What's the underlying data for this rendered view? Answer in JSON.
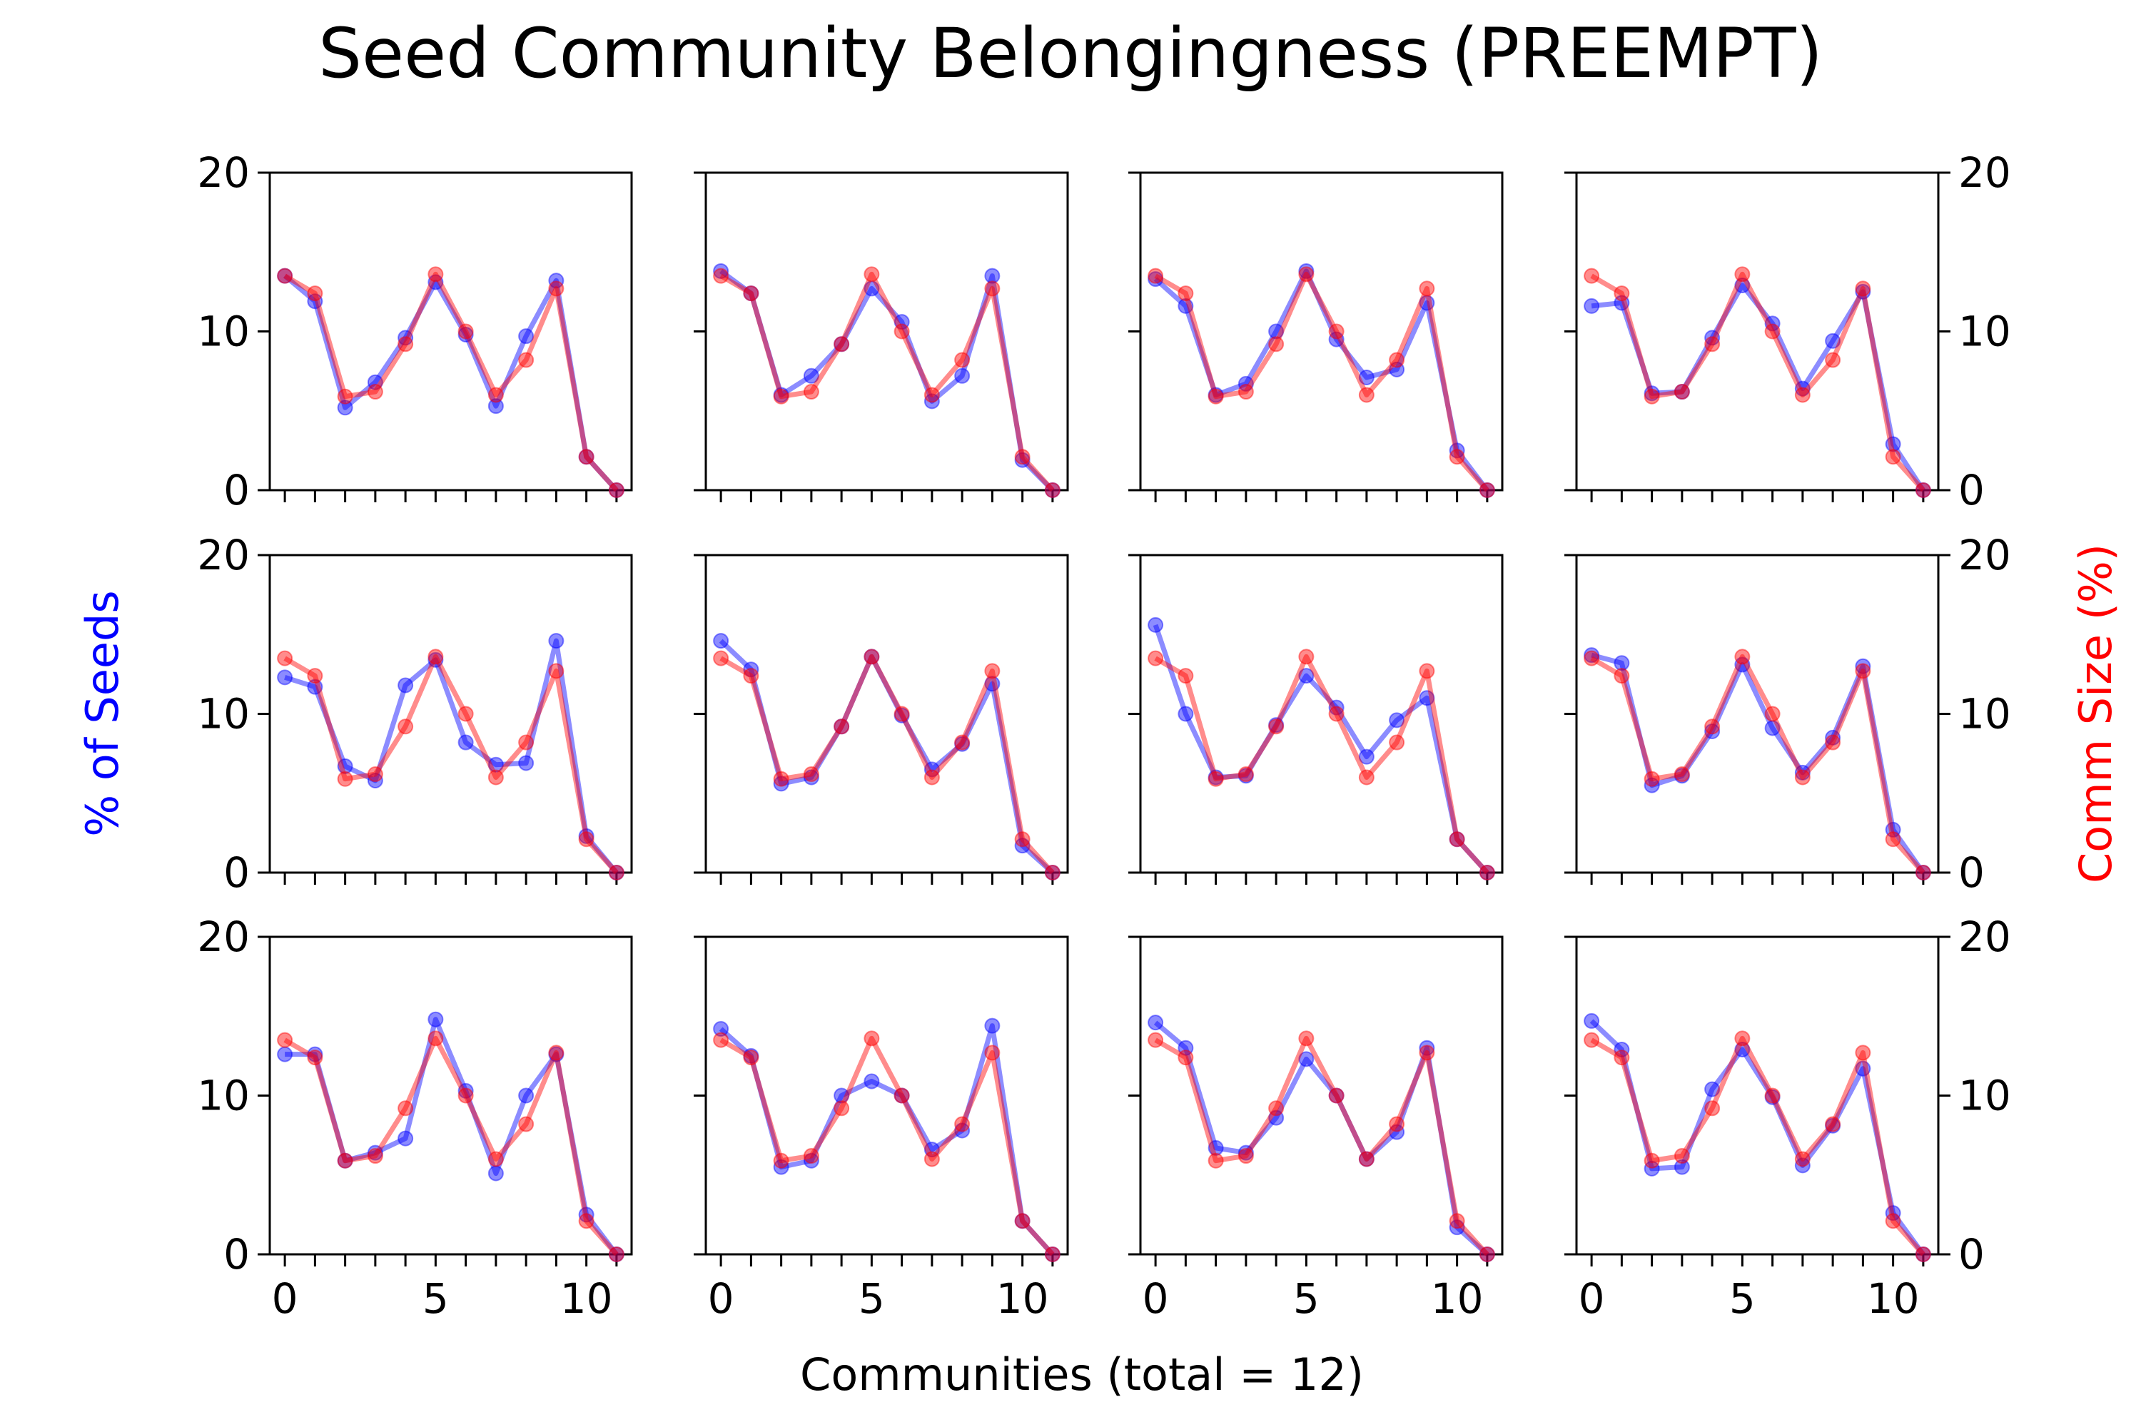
{
  "title": "Seed Community Belongingness (PREEMPT)",
  "xlabel": "Communities (total = 12)",
  "ylabel_left": "% of Seeds",
  "ylabel_right": "Comm Size (%)",
  "colors": {
    "seeds": "#0000ff",
    "comm_size": "#ff0000",
    "axes": "#000000"
  },
  "chart_data": {
    "type": "line",
    "layout": "3 rows x 4 columns of small multiples",
    "x": [
      0,
      1,
      2,
      3,
      4,
      5,
      6,
      7,
      8,
      9,
      10,
      11
    ],
    "xticks": [
      0,
      5,
      10
    ],
    "xlim": [
      -0.5,
      11.5
    ],
    "ylim": [
      0,
      20
    ],
    "yticks": [
      0,
      10,
      20
    ],
    "grid": false,
    "comm_size": [
      13.5,
      12.4,
      5.9,
      6.2,
      9.2,
      13.6,
      10.0,
      6.0,
      8.2,
      12.7,
      2.1,
      0.0
    ],
    "panels": [
      {
        "seeds": [
          13.5,
          11.9,
          5.2,
          6.8,
          9.6,
          13.1,
          9.8,
          5.3,
          9.7,
          13.2,
          2.1,
          0.0
        ]
      },
      {
        "seeds": [
          13.8,
          12.4,
          6.0,
          7.2,
          9.2,
          12.7,
          10.6,
          5.6,
          7.2,
          13.5,
          1.9,
          0.0
        ]
      },
      {
        "seeds": [
          13.3,
          11.6,
          6.0,
          6.7,
          10.0,
          13.8,
          9.5,
          7.1,
          7.6,
          11.8,
          2.5,
          0.0
        ]
      },
      {
        "seeds": [
          11.6,
          11.8,
          6.1,
          6.2,
          9.6,
          12.9,
          10.5,
          6.4,
          9.4,
          12.5,
          2.9,
          0.0
        ]
      },
      {
        "seeds": [
          12.3,
          11.7,
          6.7,
          5.8,
          11.8,
          13.4,
          8.2,
          6.8,
          6.9,
          14.6,
          2.3,
          0.0
        ]
      },
      {
        "seeds": [
          14.6,
          12.8,
          5.6,
          6.0,
          9.2,
          13.6,
          9.9,
          6.5,
          8.1,
          11.9,
          1.7,
          0.0
        ]
      },
      {
        "seeds": [
          15.6,
          10.0,
          6.0,
          6.1,
          9.3,
          12.4,
          10.4,
          7.3,
          9.6,
          11.0,
          2.1,
          0.0
        ]
      },
      {
        "seeds": [
          13.7,
          13.2,
          5.5,
          6.1,
          8.9,
          13.1,
          9.1,
          6.3,
          8.5,
          13.0,
          2.7,
          0.0
        ]
      },
      {
        "seeds": [
          12.6,
          12.6,
          5.9,
          6.4,
          7.3,
          14.8,
          10.3,
          5.1,
          10.0,
          12.6,
          2.5,
          0.0
        ]
      },
      {
        "seeds": [
          14.2,
          12.5,
          5.5,
          5.9,
          10.0,
          10.9,
          10.0,
          6.6,
          7.8,
          14.4,
          2.1,
          0.0
        ]
      },
      {
        "seeds": [
          14.6,
          13.0,
          6.7,
          6.4,
          8.6,
          12.3,
          10.0,
          6.0,
          7.7,
          13.0,
          1.7,
          0.0
        ]
      },
      {
        "seeds": [
          14.7,
          12.9,
          5.4,
          5.5,
          10.4,
          12.9,
          9.9,
          5.6,
          8.1,
          11.7,
          2.6,
          0.0
        ]
      }
    ]
  }
}
